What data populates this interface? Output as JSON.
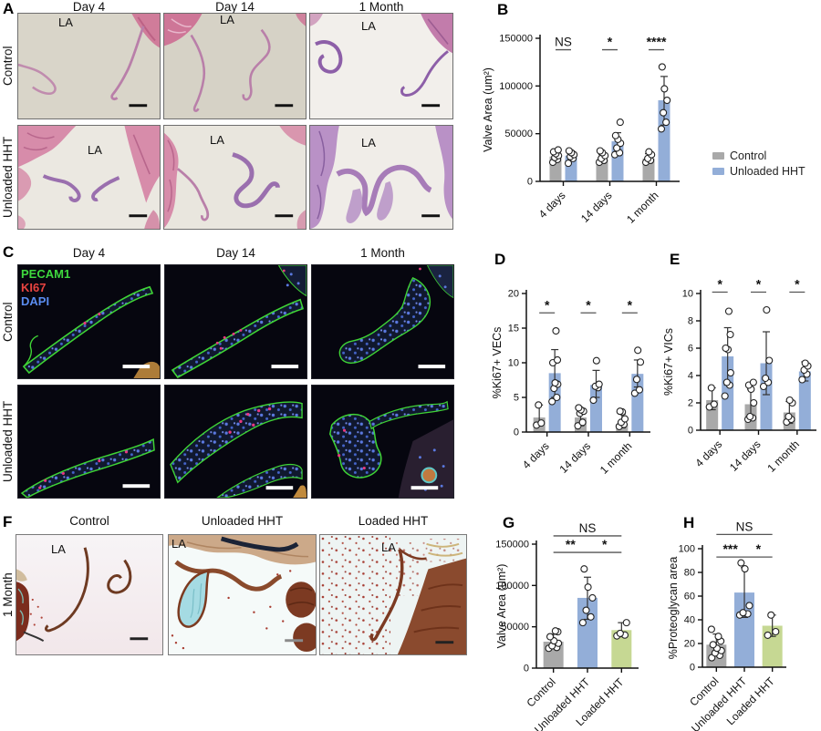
{
  "panels": {
    "A": {
      "label": "A",
      "col_headers": [
        "Day 4",
        "Day 14",
        "1 Month"
      ],
      "row_headers": [
        "Control",
        "Unloaded HHT"
      ],
      "annotation": "LA",
      "stain": "H&E"
    },
    "B": {
      "label": "B"
    },
    "C": {
      "label": "C",
      "col_headers": [
        "Day 4",
        "Day 14",
        "1 Month"
      ],
      "row_headers": [
        "Control",
        "Unloaded HHT"
      ],
      "channels": [
        {
          "name": "PECAM1",
          "color": "#3ed83e"
        },
        {
          "name": "KI67",
          "color": "#e84440"
        },
        {
          "name": "DAPI",
          "color": "#5a8cf0"
        }
      ]
    },
    "D": {
      "label": "D"
    },
    "E": {
      "label": "E"
    },
    "F": {
      "label": "F",
      "col_headers": [
        "Control",
        "Unloaded HHT",
        "Loaded HHT"
      ],
      "row_headers": [
        "1 Month"
      ],
      "annotation": "LA"
    },
    "G": {
      "label": "G"
    },
    "H": {
      "label": "H"
    }
  },
  "colors": {
    "control": "#a9a9a9",
    "unloaded_hht": "#93aed8",
    "loaded_hht": "#c6d893"
  },
  "chart_data": [
    {
      "id": "B",
      "type": "bar",
      "title": "",
      "xlabel": "",
      "ylabel": "Valve Area (um²)",
      "ylim": [
        0,
        150000
      ],
      "yticks": [
        0,
        50000,
        100000,
        150000
      ],
      "categories": [
        "4 days",
        "14 days",
        "1 month"
      ],
      "series": [
        {
          "name": "Control",
          "color": "#a9a9a9",
          "values": [
            26000,
            23000,
            24000
          ],
          "errors": [
            [
              21000,
              31000
            ],
            [
              19000,
              28000
            ],
            [
              20000,
              29000
            ]
          ],
          "points": [
            [
              20000,
              23000,
              25000,
              27000,
              29000,
              31000,
              33000
            ],
            [
              20000,
              22000,
              24000,
              27000,
              30000,
              32000
            ],
            [
              20000,
              22000,
              24000,
              28000,
              31000
            ]
          ]
        },
        {
          "name": "Unloaded HHT",
          "color": "#93aed8",
          "values": [
            27000,
            42000,
            85000
          ],
          "errors": [
            [
              22000,
              32000
            ],
            [
              30000,
              51000
            ],
            [
              59000,
              110000
            ]
          ],
          "points": [
            [
              19000,
              24000,
              26000,
              28000,
              30000,
              32000
            ],
            [
              28000,
              30000,
              35000,
              40000,
              44000,
              48000,
              62000
            ],
            [
              55000,
              62000,
              72000,
              85000,
              97000,
              120000
            ]
          ]
        }
      ],
      "significance": [
        {
          "category": 0,
          "label": "NS",
          "y": 138000
        },
        {
          "category": 1,
          "label": "*",
          "y": 138000
        },
        {
          "category": 2,
          "label": "****",
          "y": 138000
        }
      ],
      "legend": {
        "position": "right",
        "items": [
          {
            "label": "Control",
            "color": "#a9a9a9"
          },
          {
            "label": "Unloaded HHT",
            "color": "#93aed8"
          }
        ]
      }
    },
    {
      "id": "D",
      "type": "bar",
      "title": "",
      "xlabel": "",
      "ylabel": "%Ki67+ VECs",
      "ylim": [
        0,
        20
      ],
      "yticks": [
        0,
        5,
        10,
        15,
        20
      ],
      "categories": [
        "4 days",
        "14 days",
        "1 month"
      ],
      "series": [
        {
          "name": "Control",
          "color": "#a9a9a9",
          "values": [
            2.1,
            2.1,
            1.2
          ],
          "errors": [
            [
              0.9,
              3.9
            ],
            [
              0.9,
              3.4
            ],
            [
              0.6,
              2.6
            ]
          ],
          "points": [
            [
              1.0,
              1.3,
              3.9
            ],
            [
              0.9,
              1.4,
              2.7,
              3.0,
              3.2,
              3.5
            ],
            [
              0.8,
              1.1,
              1.4,
              1.9,
              2.9,
              3.0
            ]
          ]
        },
        {
          "name": "Unloaded HHT",
          "color": "#93aed8",
          "values": [
            8.5,
            6.8,
            8.4
          ],
          "errors": [
            [
              5.0,
              11.9
            ],
            [
              5.0,
              8.9
            ],
            [
              6.5,
              10.4
            ]
          ],
          "points": [
            [
              4.4,
              5.0,
              6.3,
              6.9,
              7.1,
              10.0,
              10.4,
              14.6
            ],
            [
              4.6,
              6.4,
              6.6,
              6.9,
              10.3
            ],
            [
              5.6,
              6.1,
              7.6,
              10.1,
              11.8
            ]
          ]
        }
      ],
      "significance": [
        {
          "category": 0,
          "label": "*",
          "y": 17.2
        },
        {
          "category": 1,
          "label": "*",
          "y": 17.2
        },
        {
          "category": 2,
          "label": "*",
          "y": 17.2
        }
      ]
    },
    {
      "id": "E",
      "type": "bar",
      "title": "",
      "xlabel": "",
      "ylabel": "%Ki67+ VICs",
      "ylim": [
        0,
        10
      ],
      "yticks": [
        0,
        2,
        4,
        6,
        8,
        10
      ],
      "categories": [
        "4 days",
        "14 days",
        "1 month"
      ],
      "series": [
        {
          "name": "Control",
          "color": "#a9a9a9",
          "values": [
            2.2,
            1.9,
            1.3
          ],
          "errors": [
            [
              1.5,
              3.1
            ],
            [
              0.8,
              3.0
            ],
            [
              0.5,
              2.1
            ]
          ],
          "points": [
            [
              1.7,
              1.9,
              3.1
            ],
            [
              0.8,
              0.9,
              1.0,
              2.0,
              3.0,
              3.3,
              3.5
            ],
            [
              0.6,
              0.8,
              1.0,
              2.0,
              2.2
            ]
          ]
        },
        {
          "name": "Unloaded HHT",
          "color": "#93aed8",
          "values": [
            5.4,
            4.9,
            4.3
          ],
          "errors": [
            [
              3.3,
              7.5
            ],
            [
              2.6,
              7.2
            ],
            [
              3.6,
              5.0
            ]
          ],
          "points": [
            [
              2.5,
              3.3,
              3.5,
              4.2,
              5.9,
              6.0,
              7.0,
              8.7
            ],
            [
              3.2,
              3.5,
              3.8,
              5.1,
              8.8
            ],
            [
              3.7,
              4.1,
              4.4,
              4.7,
              4.9
            ]
          ]
        }
      ],
      "significance": [
        {
          "category": 0,
          "label": "*",
          "y": 10.1
        },
        {
          "category": 1,
          "label": "*",
          "y": 10.1
        },
        {
          "category": 2,
          "label": "*",
          "y": 10.1
        }
      ]
    },
    {
      "id": "G",
      "type": "bar",
      "title": "",
      "xlabel": "",
      "ylabel": "Valve Area (um²)",
      "ylim": [
        0,
        150000
      ],
      "yticks": [
        0,
        50000,
        100000,
        150000
      ],
      "categories": [
        "Control",
        "Unloaded HHT",
        "Loaded HHT"
      ],
      "bars": {
        "values": [
          32000,
          85000,
          46000
        ],
        "colors": [
          "#a9a9a9",
          "#93aed8",
          "#c6d893"
        ],
        "errors": [
          [
            24000,
            41000
          ],
          [
            59000,
            110000
          ],
          [
            38000,
            55000
          ]
        ],
        "points": [
          [
            24000,
            25000,
            27000,
            30000,
            33000,
            38000,
            44000,
            45000
          ],
          [
            55000,
            62000,
            70000,
            85000,
            98000,
            120000
          ],
          [
            39000,
            40000,
            42000,
            55000
          ]
        ]
      },
      "significance": [
        {
          "pair": [
            0,
            1
          ],
          "label": "**",
          "y": 140000
        },
        {
          "pair": [
            1,
            2
          ],
          "label": "*",
          "y": 140000
        },
        {
          "pair": [
            0,
            2
          ],
          "label": "NS",
          "y": 160000
        }
      ]
    },
    {
      "id": "H",
      "type": "bar",
      "title": "",
      "xlabel": "",
      "ylabel": "%Proteoglycan area",
      "ylim": [
        0,
        100
      ],
      "yticks": [
        0,
        20,
        40,
        60,
        80,
        100
      ],
      "categories": [
        "Control",
        "Unloaded HHT",
        "Loaded HHT"
      ],
      "bars": {
        "values": [
          19,
          63,
          35
        ],
        "colors": [
          "#a9a9a9",
          "#93aed8",
          "#c6d893"
        ],
        "errors": [
          [
            10,
            28
          ],
          [
            42,
            84
          ],
          [
            26,
            44
          ]
        ],
        "points": [
          [
            8,
            10,
            12,
            14,
            16,
            19,
            22,
            26,
            32
          ],
          [
            44,
            45,
            46,
            52,
            83,
            88
          ],
          [
            27,
            30,
            44
          ]
        ]
      },
      "significance": [
        {
          "pair": [
            0,
            1
          ],
          "label": "***",
          "y": 93
        },
        {
          "pair": [
            1,
            2
          ],
          "label": "*",
          "y": 93
        },
        {
          "pair": [
            0,
            2
          ],
          "label": "NS",
          "y": 112
        }
      ]
    }
  ]
}
